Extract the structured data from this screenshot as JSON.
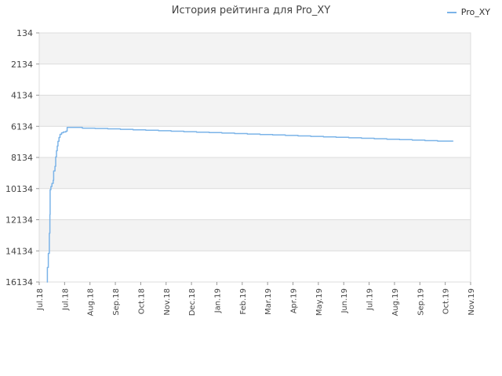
{
  "chart_data": {
    "type": "line",
    "title": "История рейтинга для Pro_XY",
    "xlabel": "",
    "ylabel": "",
    "y_inverted": true,
    "ylim": [
      134,
      16134
    ],
    "y_ticks": [
      "134",
      "2134",
      "4134",
      "6134",
      "8134",
      "10134",
      "12134",
      "14134",
      "16134"
    ],
    "x_ticks": [
      "Jul.18",
      "Jul.18",
      "Aug.18",
      "Sep.18",
      "Oct.18",
      "Nov.18",
      "Dec.18",
      "Jan.19",
      "Feb.19",
      "Mar.19",
      "Apr.19",
      "May.19",
      "Jun.19",
      "Jul.19",
      "Aug.19",
      "Sep.19",
      "Oct.19",
      "Nov.19"
    ],
    "legend_position": "top-right",
    "grid": true,
    "series": [
      {
        "name": "Pro_XY",
        "color": "#7ab3e8",
        "points": [
          [
            0.3,
            16134
          ],
          [
            0.32,
            15200
          ],
          [
            0.36,
            14300
          ],
          [
            0.4,
            13000
          ],
          [
            0.42,
            11800
          ],
          [
            0.43,
            10200
          ],
          [
            0.46,
            10000
          ],
          [
            0.5,
            9800
          ],
          [
            0.55,
            9600
          ],
          [
            0.57,
            9000
          ],
          [
            0.62,
            8700
          ],
          [
            0.65,
            8100
          ],
          [
            0.68,
            7700
          ],
          [
            0.71,
            7400
          ],
          [
            0.74,
            7100
          ],
          [
            0.78,
            6850
          ],
          [
            0.82,
            6650
          ],
          [
            0.88,
            6550
          ],
          [
            0.95,
            6500
          ],
          [
            1.05,
            6450
          ],
          [
            1.1,
            6200
          ],
          [
            1.5,
            6200
          ],
          [
            1.7,
            6250
          ],
          [
            2.2,
            6270
          ],
          [
            2.7,
            6300
          ],
          [
            3.2,
            6330
          ],
          [
            3.7,
            6360
          ],
          [
            4.2,
            6390
          ],
          [
            4.7,
            6420
          ],
          [
            5.2,
            6450
          ],
          [
            5.7,
            6480
          ],
          [
            6.2,
            6510
          ],
          [
            6.7,
            6540
          ],
          [
            7.2,
            6570
          ],
          [
            7.7,
            6600
          ],
          [
            8.2,
            6630
          ],
          [
            8.7,
            6660
          ],
          [
            9.2,
            6690
          ],
          [
            9.7,
            6720
          ],
          [
            10.2,
            6750
          ],
          [
            10.7,
            6780
          ],
          [
            11.2,
            6810
          ],
          [
            11.7,
            6840
          ],
          [
            12.2,
            6870
          ],
          [
            12.7,
            6900
          ],
          [
            13.2,
            6930
          ],
          [
            13.7,
            6960
          ],
          [
            14.2,
            6990
          ],
          [
            14.7,
            7020
          ],
          [
            15.2,
            7050
          ],
          [
            15.7,
            7080
          ],
          [
            16.3,
            7110
          ]
        ]
      }
    ]
  }
}
